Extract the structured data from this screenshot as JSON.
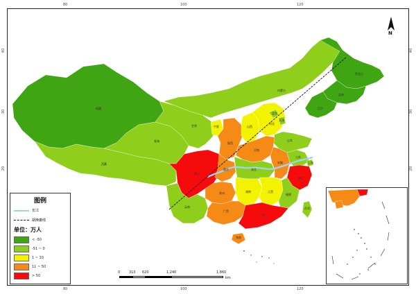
{
  "map": {
    "lon_ticks": [
      "80",
      "100",
      "120"
    ],
    "lat_ticks": [
      "40",
      "30",
      "20"
    ],
    "north_label": "N",
    "provinces": [
      {
        "name": "新疆",
        "class": 0
      },
      {
        "name": "西藏",
        "class": 1
      },
      {
        "name": "青海",
        "class": 1
      },
      {
        "name": "甘肃",
        "class": 1
      },
      {
        "name": "内蒙古",
        "class": 1
      },
      {
        "name": "黑龙江",
        "class": 0
      },
      {
        "name": "吉林",
        "class": 0
      },
      {
        "name": "辽宁",
        "class": 0
      },
      {
        "name": "宁夏",
        "class": 2
      },
      {
        "name": "陕西",
        "class": 3
      },
      {
        "name": "山西",
        "class": 2
      },
      {
        "name": "河北",
        "class": 2
      },
      {
        "name": "北京",
        "class": 1
      },
      {
        "name": "天津",
        "class": 1
      },
      {
        "name": "山东",
        "class": 1
      },
      {
        "name": "河南",
        "class": 3
      },
      {
        "name": "四川",
        "class": 4
      },
      {
        "name": "重庆",
        "class": 3
      },
      {
        "name": "湖北",
        "class": 1
      },
      {
        "name": "安徽",
        "class": 3
      },
      {
        "name": "江苏",
        "class": 1
      },
      {
        "name": "上海",
        "class": 1
      },
      {
        "name": "浙江",
        "class": 4
      },
      {
        "name": "贵州",
        "class": 3
      },
      {
        "name": "湖南",
        "class": 2
      },
      {
        "name": "江西",
        "class": 2
      },
      {
        "name": "福建",
        "class": 1
      },
      {
        "name": "云南",
        "class": 1
      },
      {
        "name": "广西",
        "class": 3
      },
      {
        "name": "广东",
        "class": 4
      },
      {
        "name": "海南",
        "class": 3
      },
      {
        "name": "台湾",
        "class": 1
      }
    ]
  },
  "legend": {
    "title": "图例",
    "river_label": "长江",
    "line_label": "胡焕庸线",
    "unit_label": "单位：万人",
    "classes": [
      {
        "label": "< -50",
        "color": "#3fa513"
      },
      {
        "label": "-51 ~ 0",
        "color": "#8fce1b"
      },
      {
        "label": "1 ~ 10",
        "color": "#f3f300"
      },
      {
        "label": "11 ~ 50",
        "color": "#f58a16"
      },
      {
        "label": "> 50",
        "color": "#f50b0b"
      }
    ],
    "river_color": "#9ed4f0",
    "line_color": "#111111"
  },
  "scale": {
    "labels": [
      "0",
      "310",
      "620",
      "1,240",
      "1,860"
    ],
    "unit": "km"
  }
}
